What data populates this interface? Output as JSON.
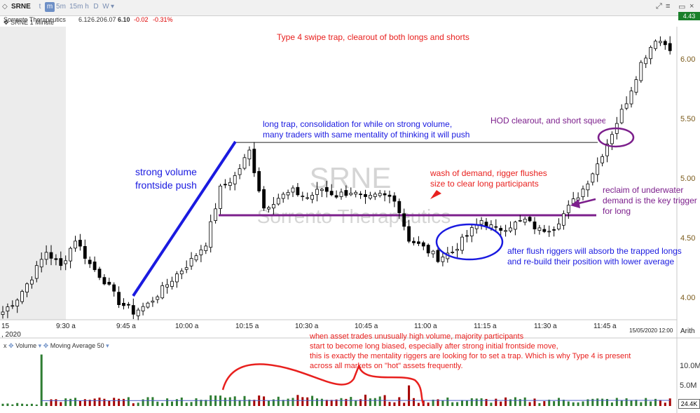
{
  "header": {
    "symbol": "SRNE",
    "company": "Sorrento Therapeutics",
    "open": "6.12",
    "high": "6.20",
    "low": "6.07",
    "last": "6.10",
    "change": "-0.02",
    "change_pct": "-0.31%",
    "timeframes": [
      "t",
      "m",
      "5m",
      "15m",
      "h",
      "D",
      "W"
    ],
    "active_timeframe": "m",
    "chart_label": "SRNE 1 Minute",
    "price_tag": "4.43"
  },
  "watermark": {
    "symbol": "SRNE",
    "company": "Sorrento Therapeutics"
  },
  "chart_data": {
    "type": "candlestick",
    "price_axis": {
      "ticks": [
        "6.00",
        "5.50",
        "5.00",
        "4.50",
        "4.00"
      ],
      "range": [
        3.93,
        6.22
      ]
    },
    "time_axis": {
      "labels": [
        "9:30 a",
        "9:45 a",
        "10:00 a",
        "10:15 a",
        "10:30 a",
        "10:45 a",
        "11:00 a",
        "11:15 a",
        "11:30 a",
        "11:45 a"
      ],
      "date_label": "15/05/2020 12:00",
      "partial_left": "15",
      "partial_left_2": ", 2020",
      "scale_label": "Arith"
    },
    "resistance_level": 5.32,
    "support_level": 4.74,
    "anchors": [
      {
        "i": 0,
        "p": 3.97
      },
      {
        "i": 3,
        "p": 4.08
      },
      {
        "i": 6,
        "p": 4.25
      },
      {
        "i": 9,
        "p": 4.45
      },
      {
        "i": 12,
        "p": 4.33
      },
      {
        "i": 15,
        "p": 4.55
      },
      {
        "i": 18,
        "p": 4.35
      },
      {
        "i": 21,
        "p": 4.22
      },
      {
        "i": 24,
        "p": 4.05
      },
      {
        "i": 27,
        "p": 3.97
      },
      {
        "i": 30,
        "p": 4.03
      },
      {
        "i": 33,
        "p": 4.15
      },
      {
        "i": 36,
        "p": 4.27
      },
      {
        "i": 39,
        "p": 4.38
      },
      {
        "i": 42,
        "p": 4.52
      },
      {
        "i": 45,
        "p": 4.95
      },
      {
        "i": 48,
        "p": 5.05
      },
      {
        "i": 51,
        "p": 5.25
      },
      {
        "i": 54,
        "p": 4.8
      },
      {
        "i": 57,
        "p": 4.88
      },
      {
        "i": 60,
        "p": 4.93
      },
      {
        "i": 63,
        "p": 4.88
      },
      {
        "i": 66,
        "p": 4.95
      },
      {
        "i": 69,
        "p": 4.9
      },
      {
        "i": 72,
        "p": 4.93
      },
      {
        "i": 75,
        "p": 4.86
      },
      {
        "i": 78,
        "p": 4.9
      },
      {
        "i": 81,
        "p": 4.88
      },
      {
        "i": 84,
        "p": 4.55
      },
      {
        "i": 87,
        "p": 4.48
      },
      {
        "i": 90,
        "p": 4.4
      },
      {
        "i": 93,
        "p": 4.45
      },
      {
        "i": 96,
        "p": 4.58
      },
      {
        "i": 99,
        "p": 4.7
      },
      {
        "i": 102,
        "p": 4.62
      },
      {
        "i": 105,
        "p": 4.66
      },
      {
        "i": 108,
        "p": 4.7
      },
      {
        "i": 111,
        "p": 4.62
      },
      {
        "i": 114,
        "p": 4.65
      },
      {
        "i": 117,
        "p": 4.8
      },
      {
        "i": 120,
        "p": 4.95
      },
      {
        "i": 123,
        "p": 5.15
      },
      {
        "i": 126,
        "p": 5.4
      },
      {
        "i": 129,
        "p": 5.65
      },
      {
        "i": 132,
        "p": 5.95
      },
      {
        "i": 135,
        "p": 6.15
      },
      {
        "i": 138,
        "p": 6.08
      }
    ],
    "volume_axis": {
      "ticks": [
        "10.0M",
        "5.0M"
      ],
      "current": "24.4K",
      "max_m": 13
    },
    "volume_spikes": [
      {
        "i": 8,
        "v": 11.5
      },
      {
        "i": 84,
        "v": 4.6
      }
    ]
  },
  "volume_panel": {
    "label": "Volume",
    "ma_label": "Moving Average 50"
  },
  "annotations": {
    "title": "Type 4 swipe trap, clearout of both longs and shorts",
    "long_trap": [
      "long trap, consolidation for while on strong volume,",
      "many traders with same mentality of thinking it will push"
    ],
    "strong_volume": [
      "strong volume",
      "frontside push"
    ],
    "wash": [
      "wash of demand, rigger flushes",
      "size to clear long participants"
    ],
    "hod": "HOD clearout, and short squeeze",
    "reclaim": [
      "reclaim of underwater",
      "demand is the key trigger",
      "for long"
    ],
    "flush": [
      "after flush riggers will absorb the trapped longs",
      "and re-build their position with lower average"
    ],
    "bottom": [
      "when asset trades unusually high volume, majority participants",
      "start to become long biased, especially after strong initial frontside move,",
      "this is exactly the mentality riggers are looking for to set a trap. Which is why Type 4 is present",
      "across all markets on \"hot\" assets frequently."
    ]
  },
  "colors": {
    "up": "#ffffff",
    "down": "#000000",
    "vol_up": "#2e7d32",
    "vol_down": "#a50000",
    "red": "#e8201e",
    "blue": "#1a1ae0",
    "purple": "#7c1f8c"
  }
}
